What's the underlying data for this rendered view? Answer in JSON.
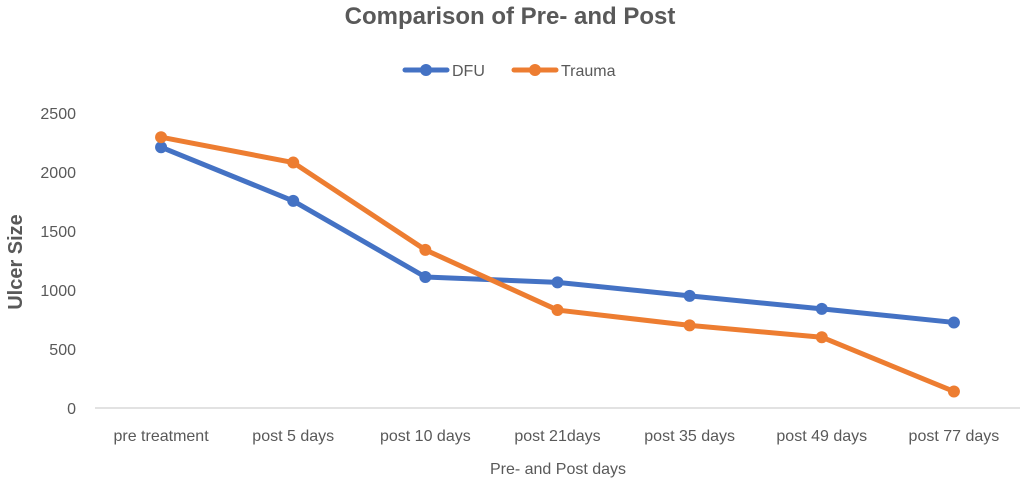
{
  "chart_data": {
    "type": "line",
    "title": "Comparison of Pre- and Post",
    "xlabel": "Pre- and Post days",
    "ylabel": "Ulcer Size",
    "categories": [
      "pre treatment",
      "post 5 days",
      "post 10 days",
      "post 21days",
      "post 35 days",
      "post 49 days",
      "post 77 days"
    ],
    "series": [
      {
        "name": "DFU",
        "color": "#4472C4",
        "values": [
          2210,
          1755,
          1110,
          1065,
          950,
          840,
          725
        ]
      },
      {
        "name": "Trauma",
        "color": "#ED7D31",
        "values": [
          2295,
          2080,
          1340,
          830,
          700,
          600,
          140
        ]
      }
    ],
    "ylim": [
      0,
      2500
    ],
    "yticks": [
      0,
      500,
      1000,
      1500,
      2000,
      2500
    ],
    "grid": false,
    "legend": "top-center"
  }
}
